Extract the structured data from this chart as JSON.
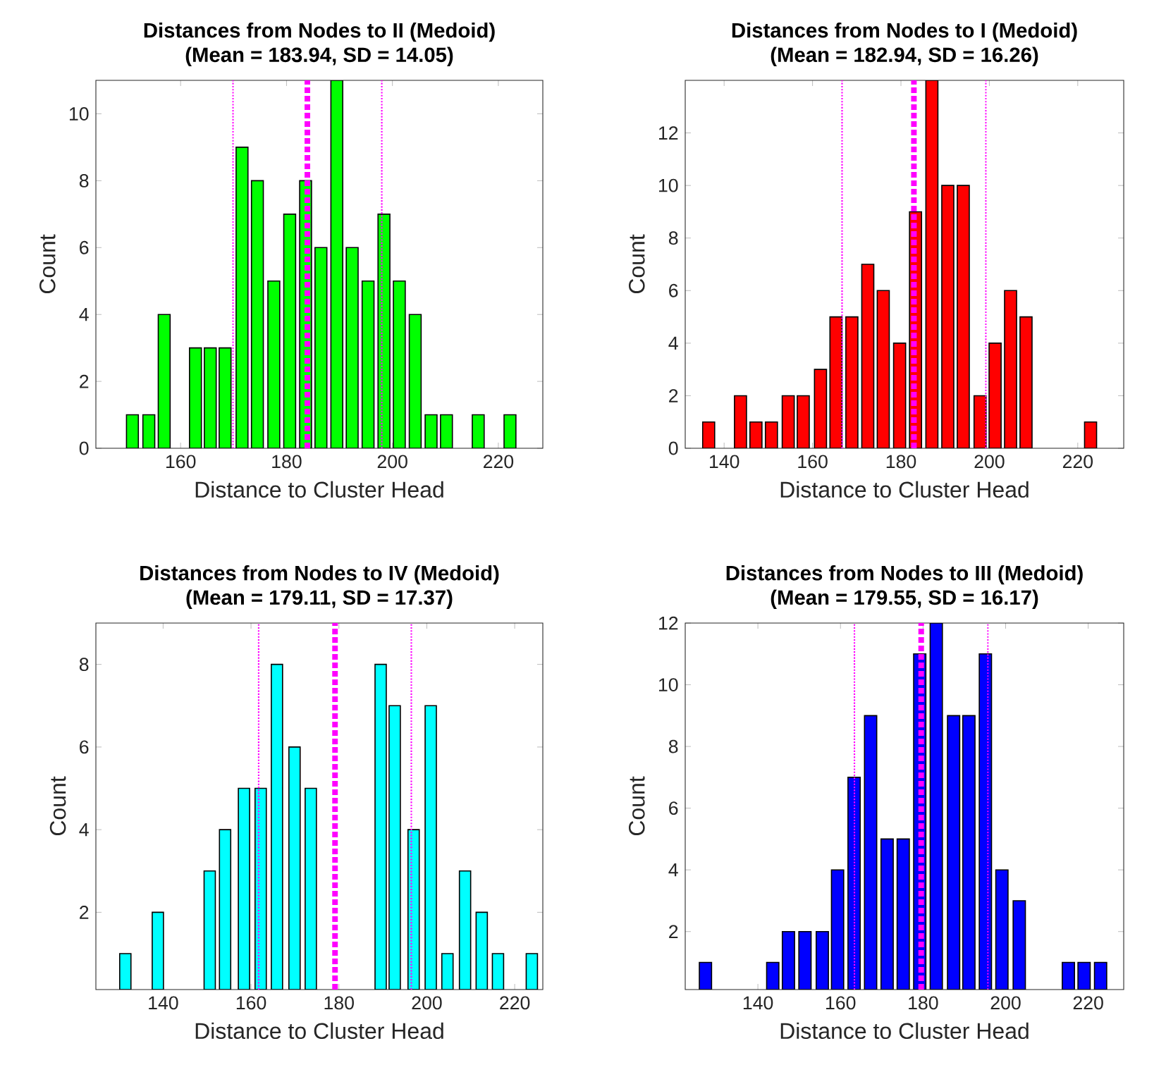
{
  "chart_data": [
    {
      "type": "bar",
      "title": "Distances from Nodes to II (Medoid)",
      "subtitle": "(Mean = 183.94, SD = 14.05)",
      "xlabel": "Distance to Cluster Head",
      "ylabel": "Count",
      "color": "#00ff00",
      "x": [
        150.9,
        154.0,
        156.9,
        162.8,
        165.6,
        168.4,
        171.6,
        174.5,
        177.6,
        180.6,
        183.6,
        186.5,
        189.5,
        192.4,
        195.4,
        198.4,
        201.3,
        204.3,
        207.3,
        210.2,
        216.2,
        222.2
      ],
      "values": [
        1,
        1,
        4,
        3,
        3,
        3,
        9,
        8,
        5,
        7,
        8,
        6,
        11,
        6,
        5,
        7,
        5,
        4,
        1,
        1,
        1,
        1
      ],
      "xlim": [
        144,
        228.4
      ],
      "xticks": [
        160,
        180,
        200,
        220
      ],
      "ylim": [
        0,
        11
      ],
      "yticks": [
        0,
        2,
        4,
        6,
        8,
        10
      ],
      "ref_lines": [
        {
          "axis": "x",
          "value": 183.94,
          "color": "#ff00ff",
          "line_style": "dashed"
        },
        {
          "axis": "x",
          "value": 169.89,
          "color": "#ff00ff",
          "line_style": "dotted"
        },
        {
          "axis": "x",
          "value": 197.99,
          "color": "#ff00ff",
          "line_style": "dotted"
        }
      ]
    },
    {
      "type": "bar",
      "title": "Distances from Nodes to I (Medoid)",
      "subtitle": "(Mean = 182.94, SD = 16.26)",
      "xlabel": "Distance to Cluster Head",
      "ylabel": "Count",
      "color": "#ff0000",
      "x": [
        136.5,
        143.7,
        147.2,
        150.7,
        154.5,
        157.9,
        161.8,
        165.3,
        168.9,
        172.5,
        176.0,
        179.7,
        183.3,
        187.0,
        190.6,
        194.1,
        197.9,
        201.3,
        204.8,
        208.3,
        222.9
      ],
      "values": [
        1,
        2,
        1,
        1,
        2,
        2,
        3,
        5,
        5,
        7,
        6,
        4,
        9,
        14,
        10,
        10,
        2,
        4,
        6,
        5,
        1
      ],
      "xlim": [
        131.2,
        230.4
      ],
      "xticks": [
        140,
        160,
        180,
        200,
        220
      ],
      "ylim": [
        0,
        14
      ],
      "yticks": [
        0,
        2,
        4,
        6,
        8,
        10,
        12
      ],
      "ref_lines": [
        {
          "axis": "x",
          "value": 182.94,
          "color": "#ff00ff",
          "line_style": "dashed"
        },
        {
          "axis": "x",
          "value": 166.68,
          "color": "#ff00ff",
          "line_style": "dotted"
        },
        {
          "axis": "x",
          "value": 199.2,
          "color": "#ff00ff",
          "line_style": "dotted"
        }
      ]
    },
    {
      "type": "bar",
      "title": "Distances from Nodes to IV (Medoid)",
      "subtitle": "(Mean = 179.11, SD = 17.37)",
      "xlabel": "Distance to Cluster Head",
      "ylabel": "Count",
      "color": "#00ffff",
      "x": [
        131.4,
        138.8,
        150.6,
        154.1,
        158.4,
        162.2,
        165.9,
        169.9,
        173.6,
        177.5,
        181.4,
        185.2,
        189.5,
        192.7,
        197.0,
        200.9,
        204.7,
        208.7,
        212.5,
        216.2,
        223.9
      ],
      "values": [
        1,
        2,
        3,
        4,
        5,
        5,
        8,
        6,
        5,
        null,
        null,
        null,
        8,
        7,
        4,
        7,
        1,
        3,
        2,
        1,
        1
      ],
      "xlim": [
        124.7,
        226.4
      ],
      "xticks": [
        140,
        160,
        180,
        200,
        220
      ],
      "ylim": [
        0.13,
        9
      ],
      "yticks": [
        2,
        4,
        6,
        8
      ],
      "ref_lines": [
        {
          "axis": "x",
          "value": 179.11,
          "color": "#ff00ff",
          "line_style": "dashed"
        },
        {
          "axis": "x",
          "value": 161.74,
          "color": "#ff00ff",
          "line_style": "dotted"
        },
        {
          "axis": "x",
          "value": 196.48,
          "color": "#ff00ff",
          "line_style": "dotted"
        }
      ]
    },
    {
      "type": "bar",
      "title": "Distances from Nodes to III (Medoid)",
      "subtitle": "(Mean = 179.55, SD = 16.17)",
      "xlabel": "Distance to Cluster Head",
      "ylabel": "Count",
      "color": "#0000ff",
      "x": [
        127.3,
        143.6,
        147.4,
        151.4,
        155.6,
        159.3,
        163.3,
        167.3,
        171.3,
        175.2,
        179.2,
        183.2,
        187.4,
        191.1,
        195.1,
        199.1,
        203.3,
        215.2,
        219.0,
        223.0
      ],
      "values": [
        1,
        1,
        2,
        2,
        2,
        4,
        7,
        9,
        5,
        5,
        11,
        12,
        9,
        9,
        11,
        4,
        3,
        1,
        1,
        1
      ],
      "xlim": [
        122.4,
        228.6
      ],
      "xticks": [
        140,
        160,
        180,
        200,
        220
      ],
      "ylim": [
        0.12,
        12
      ],
      "yticks": [
        2,
        4,
        6,
        8,
        10,
        12
      ],
      "ref_lines": [
        {
          "axis": "x",
          "value": 179.55,
          "color": "#ff00ff",
          "line_style": "dashed"
        },
        {
          "axis": "x",
          "value": 163.38,
          "color": "#ff00ff",
          "line_style": "dotted"
        },
        {
          "axis": "x",
          "value": 195.72,
          "color": "#ff00ff",
          "line_style": "dotted"
        }
      ]
    }
  ]
}
